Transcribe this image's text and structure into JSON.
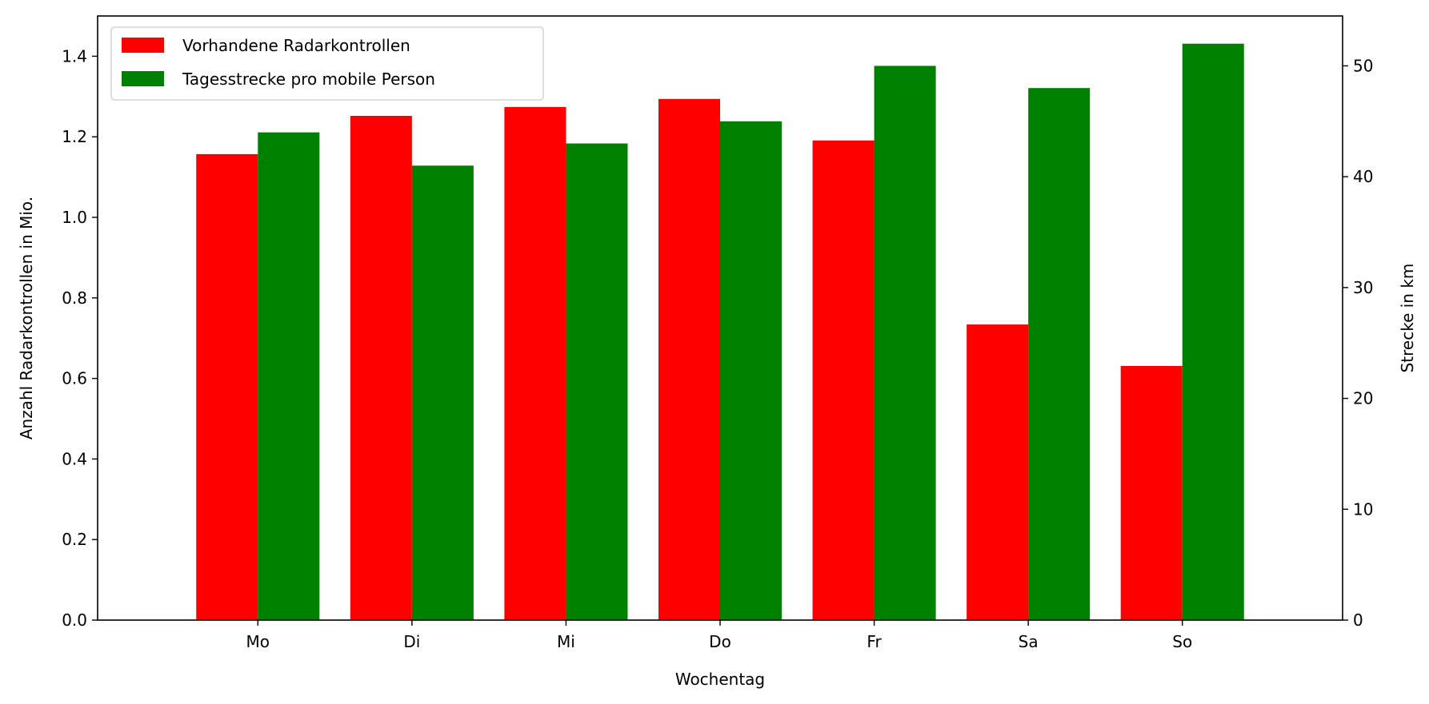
{
  "chart_data": {
    "type": "bar",
    "categories": [
      "Mo",
      "Di",
      "Mi",
      "Do",
      "Fr",
      "Sa",
      "So"
    ],
    "xlabel": "Wochentag",
    "ylabel_left": "Anzahl Radarkontrollen in Mio.",
    "ylabel_right": "Strecke in km",
    "ylim_left": [
      0,
      1.5
    ],
    "ylim_right": [
      0,
      54.5
    ],
    "yticks_left": [
      "0.0",
      "0.2",
      "0.4",
      "0.6",
      "0.8",
      "1.0",
      "1.2",
      "1.4"
    ],
    "yticks_right": [
      "0",
      "10",
      "20",
      "30",
      "40",
      "50"
    ],
    "grid": false,
    "legend_position": "top-left",
    "series": [
      {
        "name": "Vorhandene Radarkontrollen",
        "axis": "left",
        "color": "#ff0000",
        "values": [
          1.157,
          1.252,
          1.274,
          1.294,
          1.191,
          0.734,
          0.631
        ]
      },
      {
        "name": "Tagesstrecke pro mobile Person",
        "axis": "right",
        "color": "#008000",
        "values": [
          44,
          41,
          43,
          45,
          50,
          48,
          52
        ]
      }
    ]
  }
}
